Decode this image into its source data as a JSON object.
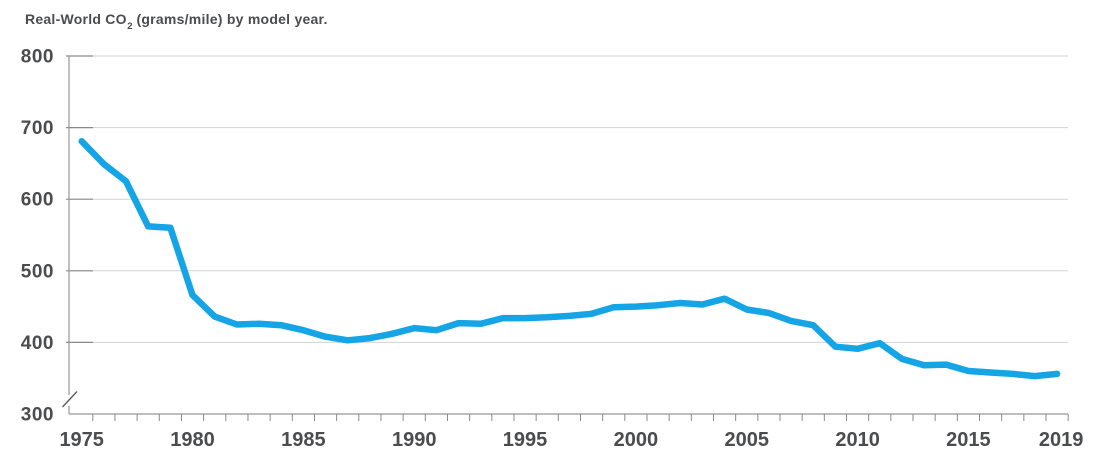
{
  "page": {
    "background": "#ffffff"
  },
  "title": {
    "prefix": "Real-World CO",
    "sub": "2",
    "suffix": " (grams/mile) by model year."
  },
  "colors": {
    "line": "#15a5e6",
    "text": "#4b4c4e",
    "gridline": "#d3d3d5",
    "tick": "#8a8a8c",
    "axis": "#98989a",
    "break_mark": "#565658"
  },
  "chart_data": {
    "type": "line",
    "title": "Real-World CO2 (grams/mile) by model year.",
    "series_name": "Real-World CO2 (grams/mile)",
    "x": [
      1975,
      1976,
      1977,
      1978,
      1979,
      1980,
      1981,
      1982,
      1983,
      1984,
      1985,
      1986,
      1987,
      1988,
      1989,
      1990,
      1991,
      1992,
      1993,
      1994,
      1995,
      1996,
      1997,
      1998,
      1999,
      2000,
      2001,
      2002,
      2003,
      2004,
      2005,
      2006,
      2007,
      2008,
      2009,
      2010,
      2011,
      2012,
      2013,
      2014,
      2015,
      2016,
      2017,
      2018,
      2019
    ],
    "values": [
      681,
      649,
      625,
      562,
      560,
      466,
      436,
      425,
      426,
      424,
      417,
      408,
      403,
      406,
      412,
      420,
      417,
      427,
      426,
      434,
      434,
      435,
      437,
      440,
      449,
      450,
      452,
      455,
      453,
      461,
      446,
      441,
      430,
      424,
      394,
      391,
      399,
      377,
      368,
      369,
      360,
      358,
      356,
      353,
      356
    ],
    "ylim": [
      300,
      800
    ],
    "yticks": [
      300,
      400,
      500,
      600,
      700,
      800
    ],
    "xtick_labels": [
      "1975",
      "1980",
      "1985",
      "1990",
      "1995",
      "2000",
      "2005",
      "2010",
      "2015",
      "2019"
    ],
    "grid": "horizontal",
    "legend": "none",
    "y_axis_break": true
  }
}
